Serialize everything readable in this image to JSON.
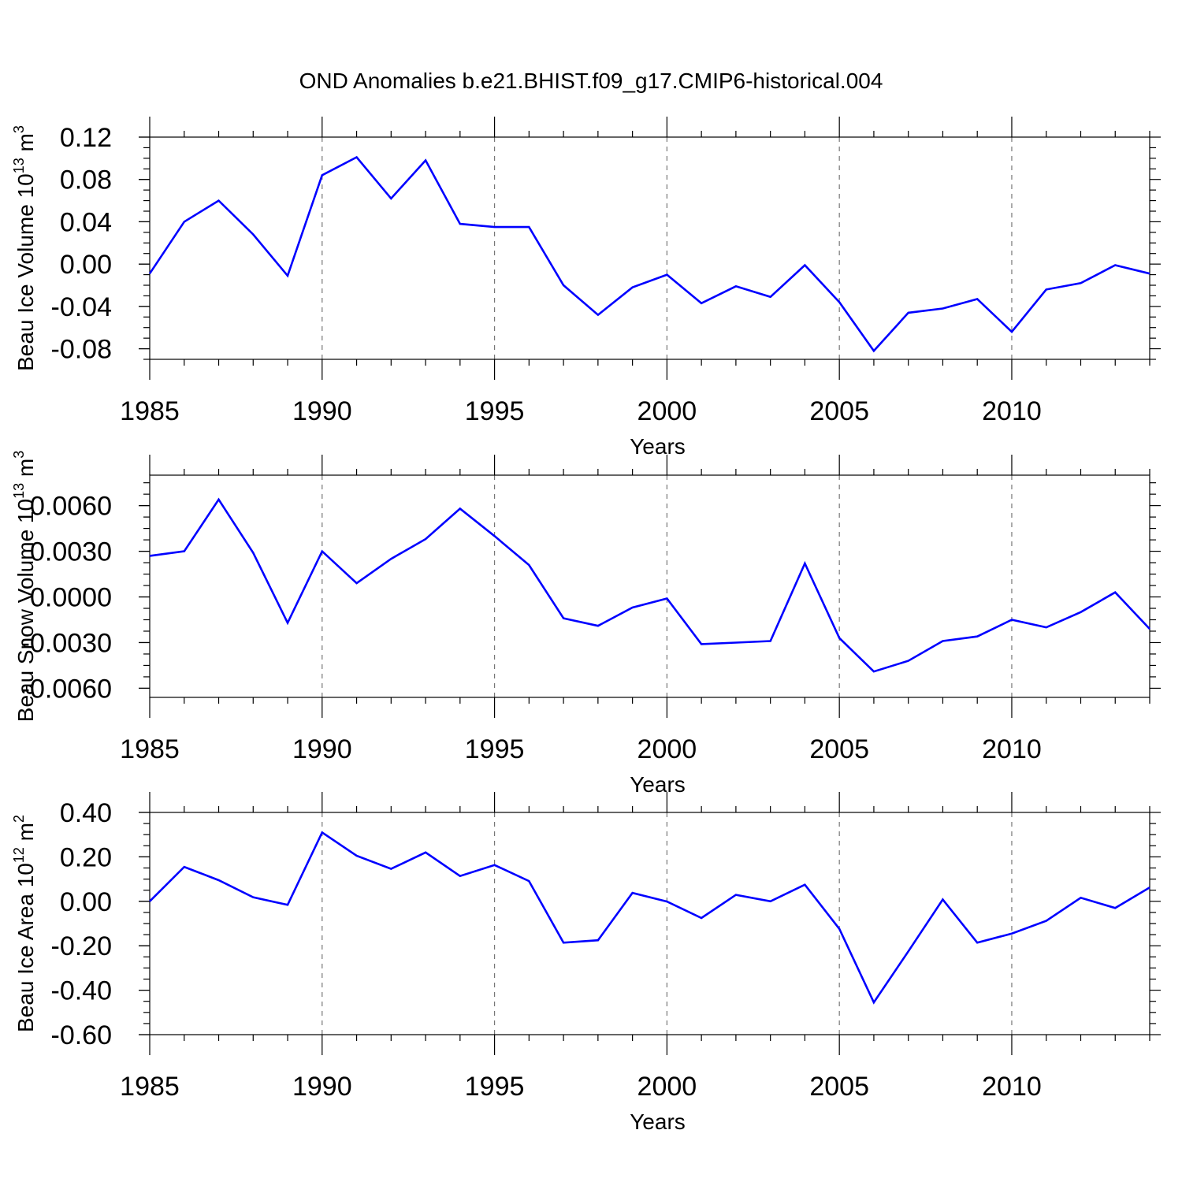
{
  "figure_title": "OND Anomalies b.e21.BHIST.f09_g17.CMIP6-historical.004",
  "chart_data": [
    {
      "type": "line",
      "name": "ice-volume",
      "xlabel": "Years",
      "ylabel": {
        "text": "Beau Ice Volume 10",
        "exp": "13",
        "unit": " m",
        "unit_exp": "3"
      },
      "xlim": [
        1985,
        2014
      ],
      "ylim": [
        -0.09,
        0.12
      ],
      "x_ticks": [
        1985,
        1990,
        1995,
        2000,
        2005,
        2010
      ],
      "x_tick_labels": [
        "1985",
        "1990",
        "1995",
        "2000",
        "2005",
        "2010"
      ],
      "y_ticks": [
        -0.08,
        -0.04,
        0.0,
        0.04,
        0.08,
        0.12
      ],
      "y_tick_labels": [
        "-0.08",
        "-0.04",
        "0.00",
        "0.04",
        "0.08",
        "0.12"
      ],
      "grid_x": [
        1990,
        1995,
        2000,
        2005,
        2010
      ],
      "series": [
        {
          "name": "Beau Ice Volume",
          "color": "#0000ff",
          "x": [
            1985,
            1986,
            1987,
            1988,
            1989,
            1990,
            1991,
            1992,
            1993,
            1994,
            1995,
            1996,
            1997,
            1998,
            1999,
            2000,
            2001,
            2002,
            2003,
            2004,
            2005,
            2006,
            2007,
            2008,
            2009,
            2010,
            2011,
            2012,
            2013,
            2014
          ],
          "values": [
            -0.009,
            0.04,
            0.06,
            0.028,
            -0.011,
            0.084,
            0.101,
            0.062,
            0.098,
            0.038,
            0.035,
            0.035,
            -0.02,
            -0.048,
            -0.022,
            -0.01,
            -0.037,
            -0.021,
            -0.031,
            -0.001,
            -0.036,
            -0.082,
            -0.046,
            -0.042,
            -0.033,
            -0.064,
            -0.024,
            -0.018,
            -0.001,
            -0.009
          ]
        }
      ]
    },
    {
      "type": "line",
      "name": "snow-volume",
      "xlabel": "Years",
      "ylabel": {
        "text": "Beau Snow Volume 10",
        "exp": "13",
        "unit": " m",
        "unit_exp": "3"
      },
      "xlim": [
        1985,
        2014
      ],
      "ylim": [
        -0.0066,
        0.008
      ],
      "x_ticks": [
        1985,
        1990,
        1995,
        2000,
        2005,
        2010
      ],
      "x_tick_labels": [
        "1985",
        "1990",
        "1995",
        "2000",
        "2005",
        "2010"
      ],
      "y_ticks": [
        -0.006,
        -0.003,
        0.0,
        0.003,
        0.006
      ],
      "y_tick_labels": [
        "-0.0060",
        "-0.0030",
        "0.0000",
        "0.0030",
        "0.0060"
      ],
      "grid_x": [
        1990,
        1995,
        2000,
        2005,
        2010
      ],
      "series": [
        {
          "name": "Beau Snow Volume",
          "color": "#0000ff",
          "x": [
            1985,
            1986,
            1987,
            1988,
            1989,
            1990,
            1991,
            1992,
            1993,
            1994,
            1995,
            1996,
            1997,
            1998,
            1999,
            2000,
            2001,
            2002,
            2003,
            2004,
            2005,
            2006,
            2007,
            2008,
            2009,
            2010,
            2011,
            2012,
            2013,
            2014
          ],
          "values": [
            0.0027,
            0.003,
            0.0064,
            0.0029,
            -0.0017,
            0.003,
            0.0009,
            0.0025,
            0.0038,
            0.0058,
            0.004,
            0.0021,
            -0.0014,
            -0.0019,
            -0.0007,
            -0.0001,
            -0.0031,
            -0.003,
            -0.0029,
            0.0022,
            -0.0027,
            -0.0049,
            -0.0042,
            -0.0029,
            -0.0026,
            -0.0015,
            -0.002,
            -0.001,
            0.0003,
            -0.0021
          ]
        }
      ]
    },
    {
      "type": "line",
      "name": "ice-area",
      "xlabel": "Years",
      "ylabel": {
        "text": "Beau Ice Area 10",
        "exp": "12",
        "unit": " m",
        "unit_exp": "2"
      },
      "xlim": [
        1985,
        2014
      ],
      "ylim": [
        -0.6,
        0.4
      ],
      "x_ticks": [
        1985,
        1990,
        1995,
        2000,
        2005,
        2010
      ],
      "x_tick_labels": [
        "1985",
        "1990",
        "1995",
        "2000",
        "2005",
        "2010"
      ],
      "y_ticks": [
        -0.6,
        -0.4,
        -0.2,
        0.0,
        0.2,
        0.4
      ],
      "y_tick_labels": [
        "-0.60",
        "-0.40",
        "-0.20",
        "0.00",
        "0.20",
        "0.40"
      ],
      "grid_x": [
        1990,
        1995,
        2000,
        2005,
        2010
      ],
      "series": [
        {
          "name": "Beau Ice Area",
          "color": "#0000ff",
          "x": [
            1985,
            1986,
            1987,
            1988,
            1989,
            1990,
            1991,
            1992,
            1993,
            1994,
            1995,
            1996,
            1997,
            1998,
            1999,
            2000,
            2001,
            2002,
            2003,
            2004,
            2005,
            2006,
            2007,
            2008,
            2009,
            2010,
            2011,
            2012,
            2013,
            2014
          ],
          "values": [
            0.0,
            0.155,
            0.095,
            0.018,
            -0.016,
            0.31,
            0.205,
            0.146,
            0.22,
            0.114,
            0.163,
            0.091,
            -0.186,
            -0.175,
            0.038,
            -0.001,
            -0.075,
            0.029,
            0.0,
            0.075,
            -0.124,
            -0.455,
            -0.225,
            0.008,
            -0.186,
            -0.145,
            -0.088,
            0.016,
            -0.03,
            0.062
          ]
        }
      ]
    }
  ]
}
